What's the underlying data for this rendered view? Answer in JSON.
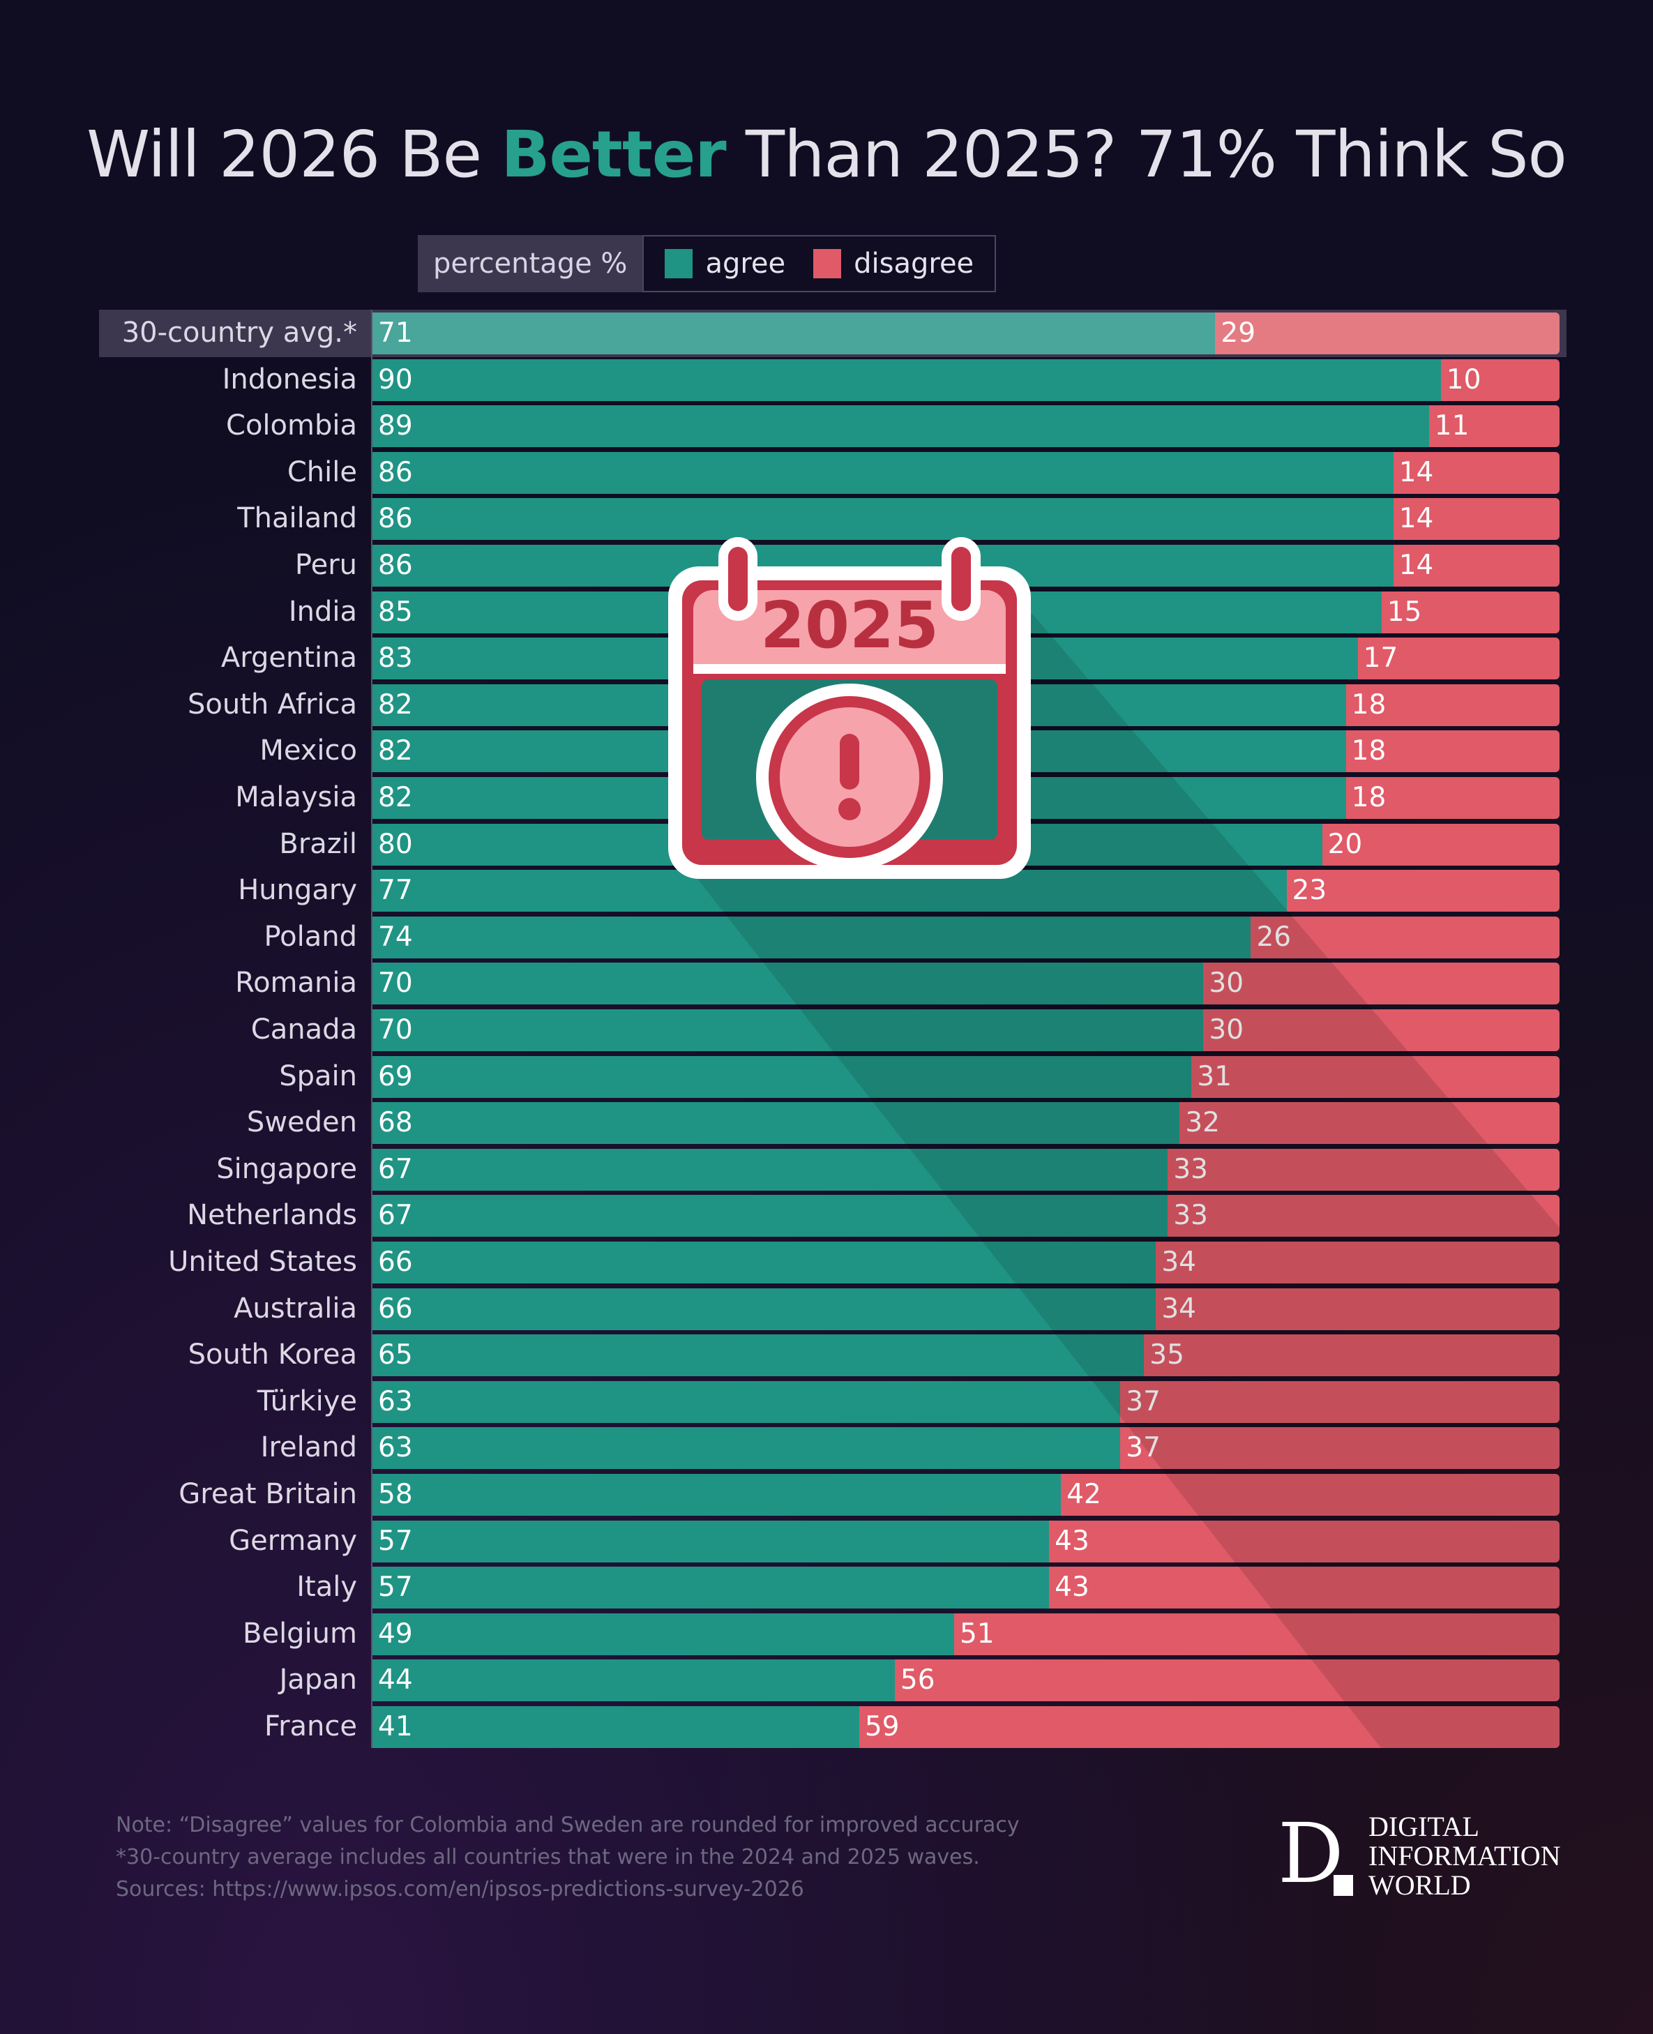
{
  "title": {
    "pre": "Will 2026 Be ",
    "highlight": "Better",
    "post": " Than 2025? 71% Think So"
  },
  "legend": {
    "label": "percentage %",
    "items": [
      {
        "name": "agree",
        "color": "#1f9484"
      },
      {
        "name": "disagree",
        "color": "#e05a68"
      }
    ]
  },
  "icon": {
    "name": "calendar-warning-icon",
    "year": "2025"
  },
  "chart_data": {
    "type": "bar",
    "stacked": true,
    "orientation": "horizontal",
    "xlim": [
      0,
      100
    ],
    "categories": [
      "30-country avg.*",
      "Indonesia",
      "Colombia",
      "Chile",
      "Thailand",
      "Peru",
      "India",
      "Argentina",
      "South Africa",
      "Mexico",
      "Malaysia",
      "Brazil",
      "Hungary",
      "Poland",
      "Romania",
      "Canada",
      "Spain",
      "Sweden",
      "Singapore",
      "Netherlands",
      "United States",
      "Australia",
      "South Korea",
      "Türkiye",
      "Ireland",
      "Great Britain",
      "Germany",
      "Italy",
      "Belgium",
      "Japan",
      "France"
    ],
    "series": [
      {
        "name": "agree",
        "color": "#1f9484",
        "values": [
          71,
          90,
          89,
          86,
          86,
          86,
          85,
          83,
          82,
          82,
          82,
          80,
          77,
          74,
          70,
          70,
          69,
          68,
          67,
          67,
          66,
          66,
          65,
          63,
          63,
          58,
          57,
          57,
          49,
          44,
          41
        ]
      },
      {
        "name": "disagree",
        "color": "#e05a68",
        "values": [
          29,
          10,
          11,
          14,
          14,
          14,
          15,
          17,
          18,
          18,
          18,
          20,
          23,
          26,
          30,
          30,
          31,
          32,
          33,
          33,
          34,
          34,
          35,
          37,
          37,
          42,
          43,
          43,
          51,
          56,
          59
        ]
      }
    ]
  },
  "footer": {
    "note": "Note: “Disagree” values for Colombia and Sweden are rounded for improved accuracy",
    "avg_note": "*30-country average includes all countries that were in the 2024 and 2025 waves.",
    "sources": "Sources: https://www.ipsos.com/en/ipsos-predictions-survey-2026"
  },
  "logo": {
    "letter": "D",
    "lines": [
      "DIGITAL",
      "INFORMATION",
      "WORLD"
    ]
  }
}
